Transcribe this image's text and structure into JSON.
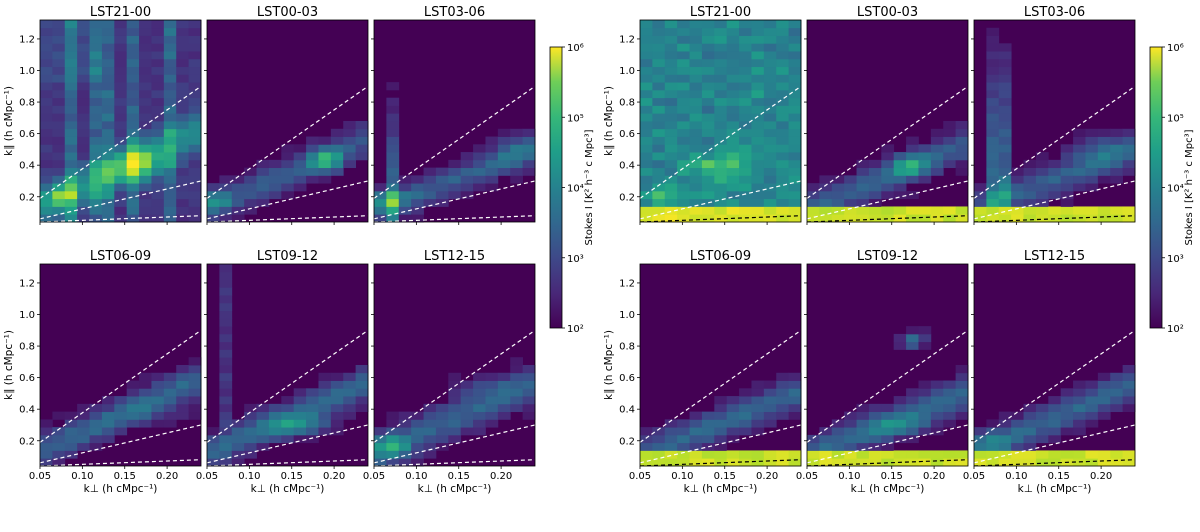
{
  "chart_data": {
    "type": "heatmap",
    "figures": [
      {
        "name": "left",
        "colorbar": {
          "label": "Stokes I [K² h⁻³ c Mpc³]",
          "scale": "log",
          "range": [
            100,
            1000000
          ],
          "ticks": [
            "10²",
            "10³",
            "10⁴",
            "10⁵",
            "10⁶"
          ]
        },
        "panels": [
          {
            "title": "LST21-00",
            "profile": "a"
          },
          {
            "title": "LST00-03",
            "profile": "b"
          },
          {
            "title": "LST03-06",
            "profile": "c"
          },
          {
            "title": "LST06-09",
            "profile": "d"
          },
          {
            "title": "LST09-12",
            "profile": "e"
          },
          {
            "title": "LST12-15",
            "profile": "f"
          }
        ]
      },
      {
        "name": "right",
        "colorbar": {
          "label": "Stokes I [K² h⁻³ c Mpc³]",
          "scale": "log",
          "range": [
            100,
            1000000
          ],
          "ticks": [
            "10²",
            "10³",
            "10⁴",
            "10⁵",
            "10⁶"
          ]
        },
        "panels": [
          {
            "title": "LST21-00",
            "profile": "g"
          },
          {
            "title": "LST00-03",
            "profile": "h"
          },
          {
            "title": "LST03-06",
            "profile": "i"
          },
          {
            "title": "LST06-09",
            "profile": "j"
          },
          {
            "title": "LST09-12",
            "profile": "k"
          },
          {
            "title": "LST12-15",
            "profile": "l"
          }
        ]
      }
    ],
    "x": {
      "label": "k⊥ (h cMpc⁻¹)",
      "range": [
        0.05,
        0.24
      ],
      "ticks": [
        "0.05",
        "0.10",
        "0.15",
        "0.20"
      ],
      "tick_values": [
        0.05,
        0.1,
        0.15,
        0.2
      ]
    },
    "y": {
      "label": "k∥ (h cMpc⁻¹)",
      "range": [
        0.04,
        1.32
      ],
      "ticks": [
        "0.2",
        "0.4",
        "0.6",
        "0.8",
        "1.0",
        "1.2"
      ],
      "tick_values": [
        0.2,
        0.4,
        0.6,
        0.8,
        1.0,
        1.2
      ]
    },
    "dashed_lines": [
      {
        "name": "horizon",
        "y_at_xmin": 0.19,
        "y_at_xmax": 0.9
      },
      {
        "name": "primary-beam",
        "y_at_xmin": 0.06,
        "y_at_xmax": 0.3
      },
      {
        "name": "buffer",
        "y_at_xmin": 0.04,
        "y_at_xmax": 0.08
      }
    ],
    "colors": {
      "low": "#440154",
      "mid": "#21918c",
      "high": "#fde725",
      "dashed_left": "#ffffff",
      "dashed_low_right": "#000000"
    }
  }
}
